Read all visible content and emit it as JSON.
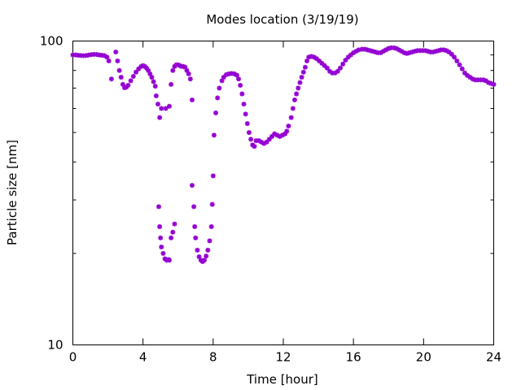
{
  "chart_data": {
    "type": "scatter",
    "title": "Modes location (3/19/19)",
    "xlabel": "Time [hour]",
    "ylabel": "Particle size [nm]",
    "xlim": [
      0,
      24
    ],
    "ylim": [
      10,
      100
    ],
    "yscale": "log",
    "grid": false,
    "marker_color": "#9400d3",
    "x_ticks": [
      0,
      4,
      8,
      12,
      16,
      20,
      24
    ],
    "y_tick_labels": [
      10,
      100
    ],
    "series": [
      {
        "points": [
          [
            0.0,
            90
          ],
          [
            0.15,
            90
          ],
          [
            0.3,
            89.8
          ],
          [
            0.45,
            89.6
          ],
          [
            0.6,
            89.5
          ],
          [
            0.75,
            89.6
          ],
          [
            0.9,
            89.9
          ],
          [
            1.05,
            90.2
          ],
          [
            1.2,
            90.4
          ],
          [
            1.35,
            90.3
          ],
          [
            1.5,
            90.0
          ],
          [
            1.65,
            89.8
          ],
          [
            1.8,
            89.5
          ],
          [
            1.95,
            88.5
          ],
          [
            2.05,
            86
          ],
          [
            2.2,
            75
          ],
          [
            2.45,
            92
          ],
          [
            2.55,
            86
          ],
          [
            2.65,
            80
          ],
          [
            2.75,
            76
          ],
          [
            2.85,
            72
          ],
          [
            2.95,
            70.2
          ],
          [
            3.05,
            70.5
          ],
          [
            3.15,
            71.5
          ],
          [
            3.3,
            74
          ],
          [
            3.45,
            76.5
          ],
          [
            3.6,
            79
          ],
          [
            3.75,
            81
          ],
          [
            3.9,
            82.5
          ],
          [
            4.0,
            83.0
          ],
          [
            4.1,
            82.5
          ],
          [
            4.2,
            81.5
          ],
          [
            4.3,
            80
          ],
          [
            4.4,
            78
          ],
          [
            4.5,
            76
          ],
          [
            4.6,
            73.5
          ],
          [
            4.7,
            71
          ],
          [
            4.75,
            66
          ],
          [
            4.85,
            62
          ],
          [
            4.95,
            56
          ],
          [
            5.05,
            60
          ],
          [
            5.3,
            60
          ],
          [
            5.5,
            61
          ],
          [
            5.6,
            72
          ],
          [
            5.7,
            80
          ],
          [
            5.8,
            82.5
          ],
          [
            5.9,
            83.5
          ],
          [
            6.0,
            83.5
          ],
          [
            6.1,
            83
          ],
          [
            6.2,
            82.5
          ],
          [
            6.3,
            82.5
          ],
          [
            6.4,
            82
          ],
          [
            6.5,
            80
          ],
          [
            6.6,
            78
          ],
          [
            6.7,
            75
          ],
          [
            6.8,
            64
          ],
          [
            4.9,
            28.5
          ],
          [
            4.95,
            24.5
          ],
          [
            5.0,
            22.5
          ],
          [
            5.05,
            21
          ],
          [
            5.15,
            20
          ],
          [
            5.25,
            19.2
          ],
          [
            5.35,
            19.0
          ],
          [
            5.45,
            19.1
          ],
          [
            5.5,
            19.0
          ],
          [
            5.6,
            22.5
          ],
          [
            5.7,
            23.5
          ],
          [
            5.8,
            25
          ],
          [
            6.8,
            33.5
          ],
          [
            6.9,
            28.5
          ],
          [
            6.95,
            24.5
          ],
          [
            7.0,
            22.5
          ],
          [
            7.1,
            20.5
          ],
          [
            7.2,
            19.5
          ],
          [
            7.3,
            19.0
          ],
          [
            7.4,
            18.8
          ],
          [
            7.5,
            19.0
          ],
          [
            7.6,
            19.6
          ],
          [
            7.7,
            20.5
          ],
          [
            7.8,
            22
          ],
          [
            7.9,
            24.5
          ],
          [
            7.95,
            29
          ],
          [
            8.0,
            36
          ],
          [
            8.05,
            49
          ],
          [
            8.15,
            58
          ],
          [
            8.25,
            65
          ],
          [
            8.35,
            70
          ],
          [
            8.5,
            74
          ],
          [
            8.6,
            76
          ],
          [
            8.75,
            77.5
          ],
          [
            8.9,
            78
          ],
          [
            9.05,
            78.2
          ],
          [
            9.2,
            78
          ],
          [
            9.35,
            77.2
          ],
          [
            9.45,
            75
          ],
          [
            9.55,
            71.5
          ],
          [
            9.65,
            67
          ],
          [
            9.75,
            62
          ],
          [
            9.85,
            57.5
          ],
          [
            9.95,
            53.5
          ],
          [
            10.05,
            50
          ],
          [
            10.15,
            47.5
          ],
          [
            10.25,
            45.5
          ],
          [
            10.35,
            45.0
          ],
          [
            10.45,
            47
          ],
          [
            10.6,
            47
          ],
          [
            10.75,
            46.5
          ],
          [
            10.9,
            46
          ],
          [
            11.05,
            46.5
          ],
          [
            11.2,
            47.5
          ],
          [
            11.35,
            48.5
          ],
          [
            11.5,
            49.5
          ],
          [
            11.65,
            49
          ],
          [
            11.8,
            48.5
          ],
          [
            11.95,
            49
          ],
          [
            12.1,
            49.5
          ],
          [
            12.2,
            50.5
          ],
          [
            12.3,
            52.5
          ],
          [
            12.45,
            56
          ],
          [
            12.55,
            60
          ],
          [
            12.65,
            64
          ],
          [
            12.75,
            67
          ],
          [
            12.85,
            70
          ],
          [
            12.95,
            73
          ],
          [
            13.05,
            76
          ],
          [
            13.15,
            79
          ],
          [
            13.25,
            82
          ],
          [
            13.35,
            86
          ],
          [
            13.45,
            88.5
          ],
          [
            13.6,
            89
          ],
          [
            13.75,
            88.5
          ],
          [
            13.9,
            87.5
          ],
          [
            14.05,
            86
          ],
          [
            14.2,
            84.5
          ],
          [
            14.35,
            83
          ],
          [
            14.5,
            81.5
          ],
          [
            14.65,
            79.5
          ],
          [
            14.8,
            78.5
          ],
          [
            14.95,
            78.5
          ],
          [
            15.1,
            79.5
          ],
          [
            15.25,
            81.5
          ],
          [
            15.4,
            84
          ],
          [
            15.55,
            86.5
          ],
          [
            15.7,
            88.5
          ],
          [
            15.85,
            90
          ],
          [
            16.0,
            91.5
          ],
          [
            16.15,
            92.5
          ],
          [
            16.3,
            93.5
          ],
          [
            16.5,
            94
          ],
          [
            16.65,
            94
          ],
          [
            16.8,
            93.5
          ],
          [
            16.95,
            93
          ],
          [
            17.1,
            92.5
          ],
          [
            17.25,
            92
          ],
          [
            17.4,
            91.5
          ],
          [
            17.55,
            91.5
          ],
          [
            17.7,
            92.5
          ],
          [
            17.85,
            93.5
          ],
          [
            18.0,
            94.5
          ],
          [
            18.15,
            95
          ],
          [
            18.3,
            95
          ],
          [
            18.45,
            94.5
          ],
          [
            18.6,
            93.5
          ],
          [
            18.75,
            92.5
          ],
          [
            18.9,
            91.5
          ],
          [
            19.05,
            91
          ],
          [
            19.2,
            91.5
          ],
          [
            19.35,
            92
          ],
          [
            19.5,
            92.5
          ],
          [
            19.65,
            93
          ],
          [
            19.8,
            93
          ],
          [
            19.95,
            93
          ],
          [
            20.1,
            93
          ],
          [
            20.25,
            92.5
          ],
          [
            20.4,
            92
          ],
          [
            20.55,
            92
          ],
          [
            20.7,
            92.5
          ],
          [
            20.85,
            93
          ],
          [
            21.0,
            93.5
          ],
          [
            21.15,
            93.5
          ],
          [
            21.3,
            93
          ],
          [
            21.45,
            92
          ],
          [
            21.6,
            90.5
          ],
          [
            21.75,
            88.5
          ],
          [
            21.9,
            86
          ],
          [
            22.05,
            83.5
          ],
          [
            22.2,
            81
          ],
          [
            22.35,
            78.5
          ],
          [
            22.5,
            77
          ],
          [
            22.65,
            76
          ],
          [
            22.8,
            75
          ],
          [
            22.95,
            74.5
          ],
          [
            23.1,
            74.5
          ],
          [
            23.25,
            74.5
          ],
          [
            23.4,
            74.5
          ],
          [
            23.55,
            74
          ],
          [
            23.7,
            73
          ],
          [
            23.85,
            72.5
          ],
          [
            24.0,
            72
          ]
        ]
      }
    ]
  }
}
